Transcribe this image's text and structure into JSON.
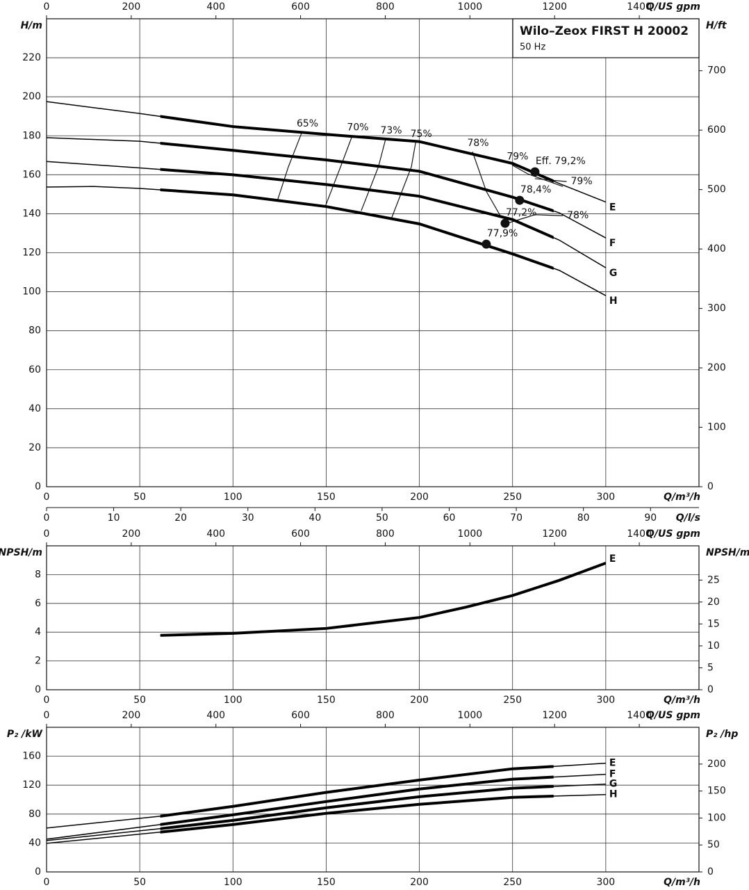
{
  "chart_data": [
    {
      "type": "line",
      "title": "Wilo–Zeox FIRST H 20002",
      "subtitle": "50 Hz",
      "x_label": "Q/m³/h",
      "xlim": [
        0,
        350
      ],
      "xticks": [
        0,
        50,
        100,
        150,
        200,
        250,
        300
      ],
      "x2_label": "Q/US gpm",
      "x2lim": [
        0,
        1541
      ],
      "x2ticks": [
        0,
        200,
        400,
        600,
        800,
        1000,
        1200,
        1400
      ],
      "x3_label": "Q/l/s",
      "x3lim": [
        0,
        97.22
      ],
      "x3ticks": [
        0,
        10,
        20,
        30,
        40,
        50,
        60,
        70,
        80,
        90
      ],
      "y_label": "H/m",
      "ylim": [
        0,
        240
      ],
      "yticks": [
        0,
        20,
        40,
        60,
        80,
        100,
        120,
        140,
        160,
        180,
        200,
        220
      ],
      "y2_label": "H/ft",
      "y2lim": [
        0,
        787.4
      ],
      "y2ticks": [
        0,
        100,
        200,
        300,
        400,
        500,
        600,
        700
      ],
      "grid": true,
      "series": [
        {
          "name": "E",
          "color": "#000000",
          "x": [
            0,
            50,
            100,
            150,
            200,
            250,
            275,
            300
          ],
          "values": [
            197.5,
            191.4,
            184.7,
            180.7,
            177,
            165.8,
            155.5,
            146
          ],
          "bold_range": [
            61,
            272
          ]
        },
        {
          "name": "F",
          "color": "#000000",
          "x": [
            0,
            50,
            100,
            150,
            200,
            250,
            275,
            300
          ],
          "values": [
            179,
            177.2,
            172.5,
            167.6,
            161.8,
            148.5,
            140.5,
            127.6
          ],
          "bold_range": [
            61,
            272
          ]
        },
        {
          "name": "G",
          "color": "#000000",
          "x": [
            0,
            50,
            100,
            150,
            200,
            250,
            275,
            300
          ],
          "values": [
            166.8,
            163.5,
            160,
            155,
            149,
            137,
            126.5,
            112.3
          ],
          "bold_range": [
            61,
            272
          ]
        },
        {
          "name": "H",
          "color": "#000000",
          "x": [
            0,
            25,
            50,
            100,
            150,
            200,
            250,
            275,
            300
          ],
          "values": [
            153.7,
            154,
            153,
            149.7,
            143.7,
            134.8,
            119.4,
            111,
            98
          ],
          "bold_range": [
            61,
            272
          ]
        }
      ],
      "efficiency_lines": [
        {
          "name": "65%",
          "x": [
            124,
            129.7,
            137
          ],
          "values": [
            147.2,
            164,
            181.8
          ]
        },
        {
          "name": "70%",
          "x": [
            149.5,
            157.7,
            164
          ],
          "values": [
            143.7,
            164,
            180
          ]
        },
        {
          "name": "73%",
          "x": [
            168.8,
            178,
            181.9
          ],
          "values": [
            141.5,
            164,
            178.3
          ]
        },
        {
          "name": "75%",
          "x": [
            184.9,
            195.7,
            198
          ],
          "values": [
            137.3,
            164,
            176.5
          ]
        },
        {
          "name": "78%",
          "x": [
            243.4,
            235.9,
            228.5
          ],
          "values": [
            139,
            151.5,
            171.8
          ]
        },
        {
          "name": "79%",
          "x": [
            277,
            258.3,
            249.7
          ],
          "values": [
            154,
            160.4,
            165
          ]
        },
        {
          "name": "79%",
          "x": [
            262,
            279
          ],
          "values": [
            158,
            156.5
          ]
        },
        {
          "name": "78%",
          "x": [
            246,
            262,
            277
          ],
          "values": [
            134.8,
            139.5,
            139
          ]
        }
      ],
      "best_efficiency": {
        "x": [
          262,
          253.8,
          246,
          235.9
        ],
        "values": [
          161.5,
          146.9,
          135.1,
          124.4
        ],
        "labels": [
          "Eff. 79,2%",
          "78,4%",
          "77,2%",
          "77,9%"
        ]
      }
    },
    {
      "type": "line",
      "x_label": "Q/m³/h",
      "xlim": [
        0,
        350
      ],
      "xticks": [
        0,
        50,
        100,
        150,
        200,
        250,
        300
      ],
      "x2_label": "Q/US gpm",
      "x2lim": [
        0,
        1541
      ],
      "x2ticks": [
        0,
        200,
        400,
        600,
        800,
        1000,
        1200,
        1400
      ],
      "y_label": "NPSH/m",
      "ylim": [
        0,
        10
      ],
      "yticks": [
        0,
        2,
        4,
        6,
        8
      ],
      "y2_label": "NPSH/m",
      "y2lim": [
        0,
        32.81
      ],
      "y2ticks": [
        0,
        5,
        10,
        15,
        20,
        25
      ],
      "grid": true,
      "series": [
        {
          "name": "E",
          "color": "#000000",
          "x": [
            61,
            100,
            150,
            200,
            225,
            250,
            275,
            300
          ],
          "values": [
            3.78,
            3.92,
            4.26,
            5.02,
            5.74,
            6.55,
            7.6,
            8.8
          ],
          "bold_range": [
            61,
            300
          ]
        }
      ]
    },
    {
      "type": "line",
      "x_label": "Q/m³/h",
      "xlim": [
        0,
        350
      ],
      "xticks": [
        0,
        50,
        100,
        150,
        200,
        250,
        300
      ],
      "x2_label": "Q/US gpm",
      "x2lim": [
        0,
        1541
      ],
      "x2ticks": [
        0,
        200,
        400,
        600,
        800,
        1000,
        1200,
        1400
      ],
      "y_label": "P₂ /kW",
      "ylim": [
        0,
        200
      ],
      "yticks": [
        0,
        40,
        80,
        120,
        160
      ],
      "y2_label": "P₂ /hp",
      "y2lim": [
        0,
        268.2
      ],
      "y2ticks": [
        0,
        50,
        100,
        150,
        200
      ],
      "grid": true,
      "series": [
        {
          "name": "E",
          "color": "#000000",
          "x": [
            0,
            61,
            100,
            150,
            200,
            250,
            270,
            300
          ],
          "values": [
            60.7,
            77,
            90.6,
            110,
            127,
            142.6,
            145.5,
            150.4
          ],
          "bold_range": [
            61,
            272
          ]
        },
        {
          "name": "F",
          "color": "#000000",
          "x": [
            0,
            61,
            100,
            150,
            200,
            250,
            300
          ],
          "values": [
            45.3,
            65.5,
            79,
            97.3,
            114.7,
            128.2,
            135
          ],
          "bold_range": [
            61,
            272
          ]
        },
        {
          "name": "G",
          "color": "#000000",
          "x": [
            0,
            61,
            100,
            150,
            200,
            250,
            300
          ],
          "values": [
            43.4,
            59.8,
            71.3,
            88.7,
            104,
            115.7,
            121.4
          ],
          "bold_range": [
            61,
            272
          ]
        },
        {
          "name": "H",
          "color": "#000000",
          "x": [
            0,
            61,
            100,
            150,
            200,
            250,
            300
          ],
          "values": [
            39.5,
            55,
            65.5,
            81,
            93.5,
            103.1,
            107
          ],
          "bold_range": [
            61,
            272
          ]
        }
      ]
    }
  ]
}
